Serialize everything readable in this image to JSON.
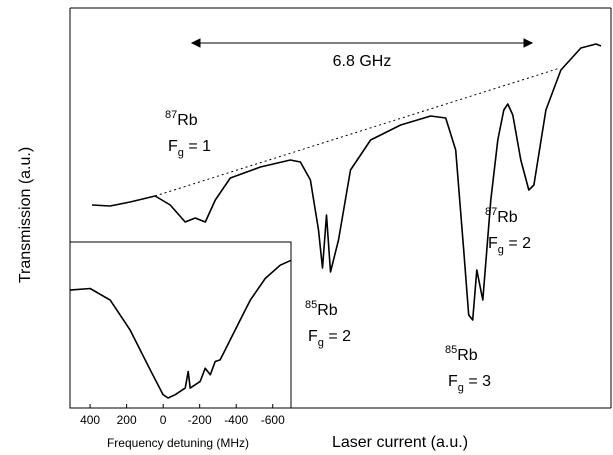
{
  "chart_data": [
    {
      "type": "line",
      "xlabel": "Laser current (a.u.)",
      "ylabel": "Transmission (a.u.)",
      "xlim": [
        0,
        540
      ],
      "ylim": [
        0,
        400
      ],
      "color": "#000000",
      "x": [
        22,
        40,
        60,
        85,
        100,
        115,
        125,
        135,
        145,
        160,
        190,
        220,
        230,
        240,
        248,
        252,
        256,
        260,
        268,
        280,
        300,
        330,
        360,
        375,
        385,
        393,
        398,
        402,
        406,
        412,
        420,
        427,
        433,
        437,
        442,
        450,
        458,
        463,
        467,
        475,
        490,
        510,
        525,
        530
      ],
      "values": [
        203,
        202,
        206,
        212,
        203,
        186,
        190,
        186,
        208,
        230,
        241,
        248,
        246,
        228,
        178,
        140,
        193,
        136,
        168,
        238,
        268,
        283,
        292,
        290,
        258,
        158,
        93,
        88,
        138,
        108,
        208,
        268,
        298,
        304,
        293,
        248,
        218,
        223,
        248,
        298,
        338,
        360,
        364,
        362
      ],
      "span_label": "6.8 GHz",
      "annotations": [
        {
          "isotope": "87",
          "element": "Rb",
          "state": "F",
          "sub": "g",
          "equals": " = 1"
        },
        {
          "isotope": "85",
          "element": "Rb",
          "state": "F",
          "sub": "g",
          "equals": " = 2"
        },
        {
          "isotope": "85",
          "element": "Rb",
          "state": "F",
          "sub": "g",
          "equals": " = 3"
        },
        {
          "isotope": "87",
          "element": "Rb",
          "state": "F",
          "sub": "g",
          "equals": " = 2"
        }
      ]
    },
    {
      "type": "line",
      "xlabel": "Frequency detuning (MHz)",
      "xlim": [
        510,
        -700
      ],
      "ylim": [
        0,
        100
      ],
      "xticks": [
        400,
        200,
        0,
        -200,
        -400,
        -600
      ],
      "color": "#000000",
      "x": [
        510,
        400,
        290,
        181,
        71,
        0,
        -27,
        -66,
        -121,
        -137,
        -148,
        -203,
        -230,
        -258,
        -285,
        -312,
        -340,
        -367,
        -422,
        -477,
        -559,
        -641,
        -700
      ],
      "values": [
        71,
        72,
        65,
        47,
        23,
        8,
        6,
        8,
        12,
        22,
        12,
        16,
        24,
        20,
        28,
        29,
        35,
        41,
        53,
        65,
        78,
        86,
        89
      ]
    }
  ]
}
